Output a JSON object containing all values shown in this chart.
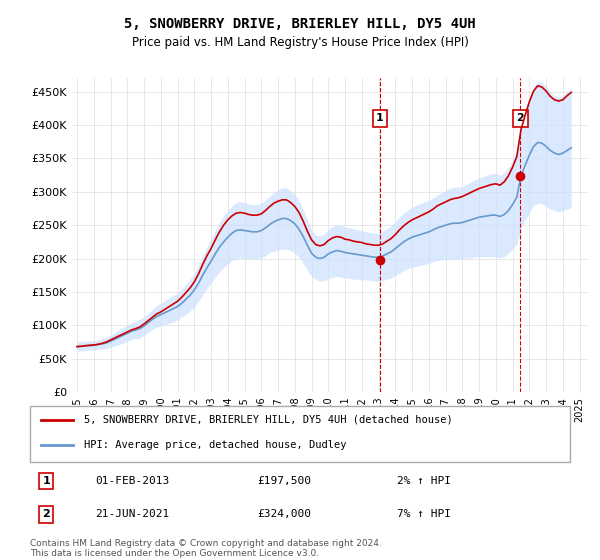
{
  "title": "5, SNOWBERRY DRIVE, BRIERLEY HILL, DY5 4UH",
  "subtitle": "Price paid vs. HM Land Registry's House Price Index (HPI)",
  "ylabel_ticks": [
    0,
    50000,
    100000,
    150000,
    200000,
    250000,
    300000,
    350000,
    400000,
    450000
  ],
  "ylim": [
    0,
    470000
  ],
  "xlim_start": 1995.0,
  "xlim_end": 2025.5,
  "transaction1_date": 2013.08,
  "transaction1_price": 197500,
  "transaction1_label": "1",
  "transaction1_text": "01-FEB-2013    £197,500    2% ↑ HPI",
  "transaction2_date": 2021.47,
  "transaction2_price": 324000,
  "transaction2_label": "2",
  "transaction2_text": "21-JUN-2021    £324,000    7% ↑ HPI",
  "legend_line1": "5, SNOWBERRY DRIVE, BRIERLEY HILL, DY5 4UH (detached house)",
  "legend_line2": "HPI: Average price, detached house, Dudley",
  "footer1": "Contains HM Land Registry data © Crown copyright and database right 2024.",
  "footer2": "This data is licensed under the Open Government Licence v3.0.",
  "line_color_red": "#cc0000",
  "line_color_blue": "#6699cc",
  "shade_color": "#cce0ff",
  "vline_color": "#cc0000",
  "background_color": "#ffffff",
  "grid_color": "#dddddd",
  "hpi_data": {
    "years": [
      1995.0,
      1995.25,
      1995.5,
      1995.75,
      1996.0,
      1996.25,
      1996.5,
      1996.75,
      1997.0,
      1997.25,
      1997.5,
      1997.75,
      1998.0,
      1998.25,
      1998.5,
      1998.75,
      1999.0,
      1999.25,
      1999.5,
      1999.75,
      2000.0,
      2000.25,
      2000.5,
      2000.75,
      2001.0,
      2001.25,
      2001.5,
      2001.75,
      2002.0,
      2002.25,
      2002.5,
      2002.75,
      2003.0,
      2003.25,
      2003.5,
      2003.75,
      2004.0,
      2004.25,
      2004.5,
      2004.75,
      2005.0,
      2005.25,
      2005.5,
      2005.75,
      2006.0,
      2006.25,
      2006.5,
      2006.75,
      2007.0,
      2007.25,
      2007.5,
      2007.75,
      2008.0,
      2008.25,
      2008.5,
      2008.75,
      2009.0,
      2009.25,
      2009.5,
      2009.75,
      2010.0,
      2010.25,
      2010.5,
      2010.75,
      2011.0,
      2011.25,
      2011.5,
      2011.75,
      2012.0,
      2012.25,
      2012.5,
      2012.75,
      2013.0,
      2013.25,
      2013.5,
      2013.75,
      2014.0,
      2014.25,
      2014.5,
      2014.75,
      2015.0,
      2015.25,
      2015.5,
      2015.75,
      2016.0,
      2016.25,
      2016.5,
      2016.75,
      2017.0,
      2017.25,
      2017.5,
      2017.75,
      2018.0,
      2018.25,
      2018.5,
      2018.75,
      2019.0,
      2019.25,
      2019.5,
      2019.75,
      2020.0,
      2020.25,
      2020.5,
      2020.75,
      2021.0,
      2021.25,
      2021.5,
      2021.75,
      2022.0,
      2022.25,
      2022.5,
      2022.75,
      2023.0,
      2023.25,
      2023.5,
      2023.75,
      2024.0,
      2024.25,
      2024.5
    ],
    "values": [
      68000,
      68500,
      69000,
      69500,
      70000,
      71000,
      72000,
      73500,
      76000,
      79000,
      82000,
      85000,
      88000,
      91000,
      93000,
      95000,
      99000,
      104000,
      109000,
      113000,
      116000,
      119000,
      122000,
      125000,
      128000,
      133000,
      139000,
      145000,
      153000,
      163000,
      175000,
      186000,
      196000,
      207000,
      217000,
      225000,
      232000,
      238000,
      242000,
      243000,
      242000,
      241000,
      240000,
      240000,
      242000,
      246000,
      251000,
      255000,
      258000,
      260000,
      260000,
      257000,
      252000,
      244000,
      233000,
      220000,
      208000,
      202000,
      200000,
      202000,
      207000,
      210000,
      212000,
      211000,
      209000,
      208000,
      207000,
      206000,
      205000,
      204000,
      203000,
      202000,
      202000,
      204000,
      207000,
      210000,
      215000,
      220000,
      225000,
      229000,
      232000,
      234000,
      236000,
      238000,
      240000,
      243000,
      246000,
      248000,
      250000,
      252000,
      253000,
      253000,
      254000,
      256000,
      258000,
      260000,
      262000,
      263000,
      264000,
      265000,
      265000,
      263000,
      266000,
      272000,
      281000,
      292000,
      324000,
      340000,
      355000,
      368000,
      374000,
      373000,
      368000,
      362000,
      358000,
      356000,
      358000,
      362000,
      366000
    ],
    "upper": [
      75000,
      75500,
      76000,
      76500,
      77000,
      78000,
      80000,
      82000,
      85000,
      89000,
      93000,
      97000,
      100000,
      103000,
      106000,
      109000,
      113000,
      118000,
      124000,
      129000,
      133000,
      137000,
      141000,
      145000,
      148000,
      154000,
      161000,
      169000,
      178000,
      190000,
      204000,
      217000,
      229000,
      242000,
      254000,
      264000,
      272000,
      279000,
      284000,
      285000,
      284000,
      282000,
      281000,
      281000,
      283000,
      288000,
      293000,
      299000,
      303000,
      306000,
      306000,
      302000,
      296000,
      286000,
      273000,
      258000,
      243000,
      235000,
      234000,
      237000,
      244000,
      248000,
      251000,
      250000,
      247000,
      246000,
      245000,
      243000,
      242000,
      240000,
      239000,
      238000,
      238000,
      241000,
      245000,
      249000,
      255000,
      262000,
      268000,
      273000,
      277000,
      280000,
      282000,
      285000,
      287000,
      291000,
      295000,
      298000,
      302000,
      305000,
      307000,
      307000,
      308000,
      311000,
      315000,
      318000,
      321000,
      323000,
      325000,
      327000,
      328000,
      325000,
      329000,
      336000,
      347000,
      362000,
      402000,
      423000,
      441000,
      457000,
      465000,
      464000,
      458000,
      450000,
      444000,
      442000,
      444000,
      450000,
      455000
    ],
    "lower": [
      61000,
      61500,
      62000,
      62500,
      63000,
      64000,
      64000,
      65000,
      67000,
      69000,
      71000,
      73000,
      76000,
      79000,
      80000,
      81000,
      85000,
      90000,
      94000,
      97000,
      99000,
      101000,
      103000,
      105000,
      108000,
      112000,
      117000,
      121000,
      128000,
      136000,
      146000,
      155000,
      163000,
      172000,
      180000,
      186000,
      192000,
      197000,
      200000,
      201000,
      200000,
      200000,
      199000,
      199000,
      201000,
      204000,
      209000,
      211000,
      213000,
      214000,
      214000,
      212000,
      208000,
      202000,
      193000,
      182000,
      173000,
      169000,
      166000,
      167000,
      170000,
      172000,
      173000,
      172000,
      171000,
      170000,
      169000,
      169000,
      168000,
      168000,
      167000,
      166000,
      166000,
      167000,
      169000,
      171000,
      175000,
      178000,
      182000,
      185000,
      187000,
      188000,
      190000,
      191000,
      193000,
      195000,
      197000,
      198000,
      198000,
      199000,
      199000,
      199000,
      200000,
      201000,
      201000,
      202000,
      203000,
      203000,
      203000,
      203000,
      202000,
      201000,
      203000,
      208000,
      215000,
      222000,
      246000,
      257000,
      269000,
      279000,
      283000,
      282000,
      278000,
      274000,
      272000,
      270000,
      272000,
      274000,
      277000
    ]
  },
  "property_line": {
    "years": [
      1995.0,
      1995.25,
      1995.5,
      1995.75,
      1996.0,
      1996.25,
      1996.5,
      1996.75,
      1997.0,
      1997.25,
      1997.5,
      1997.75,
      1998.0,
      1998.25,
      1998.5,
      1998.75,
      1999.0,
      1999.25,
      1999.5,
      1999.75,
      2000.0,
      2000.25,
      2000.5,
      2000.75,
      2001.0,
      2001.25,
      2001.5,
      2001.75,
      2002.0,
      2002.25,
      2002.5,
      2002.75,
      2003.0,
      2003.25,
      2003.5,
      2003.75,
      2004.0,
      2004.25,
      2004.5,
      2004.75,
      2005.0,
      2005.25,
      2005.5,
      2005.75,
      2006.0,
      2006.25,
      2006.5,
      2006.75,
      2007.0,
      2007.25,
      2007.5,
      2007.75,
      2008.0,
      2008.25,
      2008.5,
      2008.75,
      2009.0,
      2009.25,
      2009.5,
      2009.75,
      2010.0,
      2010.25,
      2010.5,
      2010.75,
      2011.0,
      2011.25,
      2011.5,
      2011.75,
      2012.0,
      2012.25,
      2012.5,
      2012.75,
      2013.0,
      2013.25,
      2013.5,
      2013.75,
      2014.0,
      2014.25,
      2014.5,
      2014.75,
      2015.0,
      2015.25,
      2015.5,
      2015.75,
      2016.0,
      2016.25,
      2016.5,
      2016.75,
      2017.0,
      2017.25,
      2017.5,
      2017.75,
      2018.0,
      2018.25,
      2018.5,
      2018.75,
      2019.0,
      2019.25,
      2019.5,
      2019.75,
      2020.0,
      2020.25,
      2020.5,
      2020.75,
      2021.0,
      2021.25,
      2021.5,
      2021.75,
      2022.0,
      2022.25,
      2022.5,
      2022.75,
      2023.0,
      2023.25,
      2023.5,
      2023.75,
      2024.0,
      2024.25,
      2024.5
    ],
    "values": [
      68000,
      68500,
      69500,
      70000,
      70500,
      71500,
      73000,
      75000,
      78000,
      81000,
      84000,
      87000,
      90000,
      93000,
      95000,
      97500,
      102000,
      107000,
      112000,
      117000,
      120000,
      124000,
      128000,
      132000,
      136000,
      142000,
      149000,
      156000,
      165000,
      177000,
      191000,
      204000,
      215000,
      228000,
      240000,
      250000,
      258000,
      264000,
      268000,
      269000,
      268000,
      266000,
      265000,
      265000,
      267000,
      272000,
      278000,
      283000,
      286000,
      288000,
      288000,
      284000,
      278000,
      269000,
      256000,
      241000,
      228000,
      221000,
      219000,
      221000,
      227000,
      231000,
      233000,
      232000,
      229000,
      228000,
      226000,
      225000,
      224000,
      222000,
      221000,
      220000,
      220000,
      222000,
      226000,
      230000,
      236000,
      243000,
      249000,
      254000,
      258000,
      261000,
      264000,
      267000,
      270000,
      274000,
      279000,
      282000,
      285000,
      288000,
      290000,
      291000,
      293000,
      296000,
      299000,
      302000,
      305000,
      307000,
      309000,
      311000,
      312000,
      310000,
      315000,
      324000,
      337000,
      353000,
      393000,
      415000,
      435000,
      451000,
      459000,
      457000,
      451000,
      443000,
      438000,
      436000,
      438000,
      444000,
      449000
    ]
  },
  "xtick_years": [
    1995,
    1996,
    1997,
    1998,
    1999,
    2000,
    2001,
    2002,
    2003,
    2004,
    2005,
    2006,
    2007,
    2008,
    2009,
    2010,
    2011,
    2012,
    2013,
    2014,
    2015,
    2016,
    2017,
    2018,
    2019,
    2020,
    2021,
    2022,
    2023,
    2024,
    2025
  ]
}
